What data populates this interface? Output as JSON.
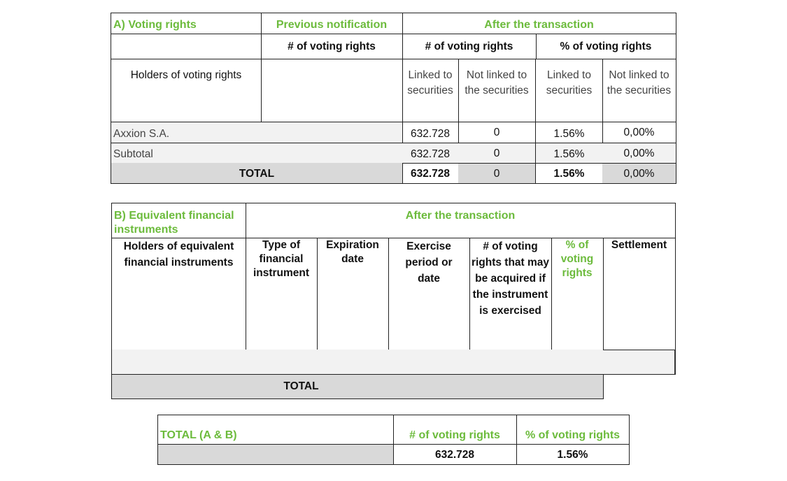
{
  "colors": {
    "accent_green": "#6cbb3c",
    "row_light": "#f2f2f2",
    "row_total": "#d9d9d9"
  },
  "table_a": {
    "title": "A) Voting rights",
    "previous_notification": "Previous notification",
    "after_transaction": "After the transaction",
    "num_voting_rights_prev": "# of voting rights",
    "num_voting_rights": "# of voting rights",
    "pct_voting_rights": "% of voting rights",
    "holders_header": "Holders of voting rights",
    "linked": "Linked to securities",
    "not_linked": "Not linked to the securities",
    "pct_linked": "Linked to securities",
    "pct_not_linked": "Not linked to the securities",
    "rows": [
      {
        "holder": "Axxion S.A.",
        "previous": "",
        "linked": "632.728",
        "not_linked": "0",
        "pct_linked": "1.56%",
        "pct_not_linked": "0,00%"
      },
      {
        "holder": "Subtotal",
        "previous": "",
        "linked": "632.728",
        "not_linked": "0",
        "pct_linked": "1.56%",
        "pct_not_linked": "0,00%"
      }
    ],
    "total": {
      "label": "TOTAL",
      "linked": "632.728",
      "not_linked": "0",
      "pct_linked": "1.56%",
      "pct_not_linked": "0,00%"
    }
  },
  "table_b": {
    "title": "B) Equivalent financial instruments",
    "after_transaction": "After the transaction",
    "headers": [
      "Holders of equivalent financial instruments",
      "Type of financial instrument",
      "Expiration date",
      "Exercise period or date",
      "# of voting rights that may be acquired if the instrument is exercised",
      "% of voting rights",
      "Settlement"
    ],
    "total_label": "TOTAL"
  },
  "table_c": {
    "title": "TOTAL (A & B)",
    "num_header": "# of voting rights",
    "pct_header": "% of voting rights",
    "num_value": "632.728",
    "pct_value": "1.56%"
  }
}
